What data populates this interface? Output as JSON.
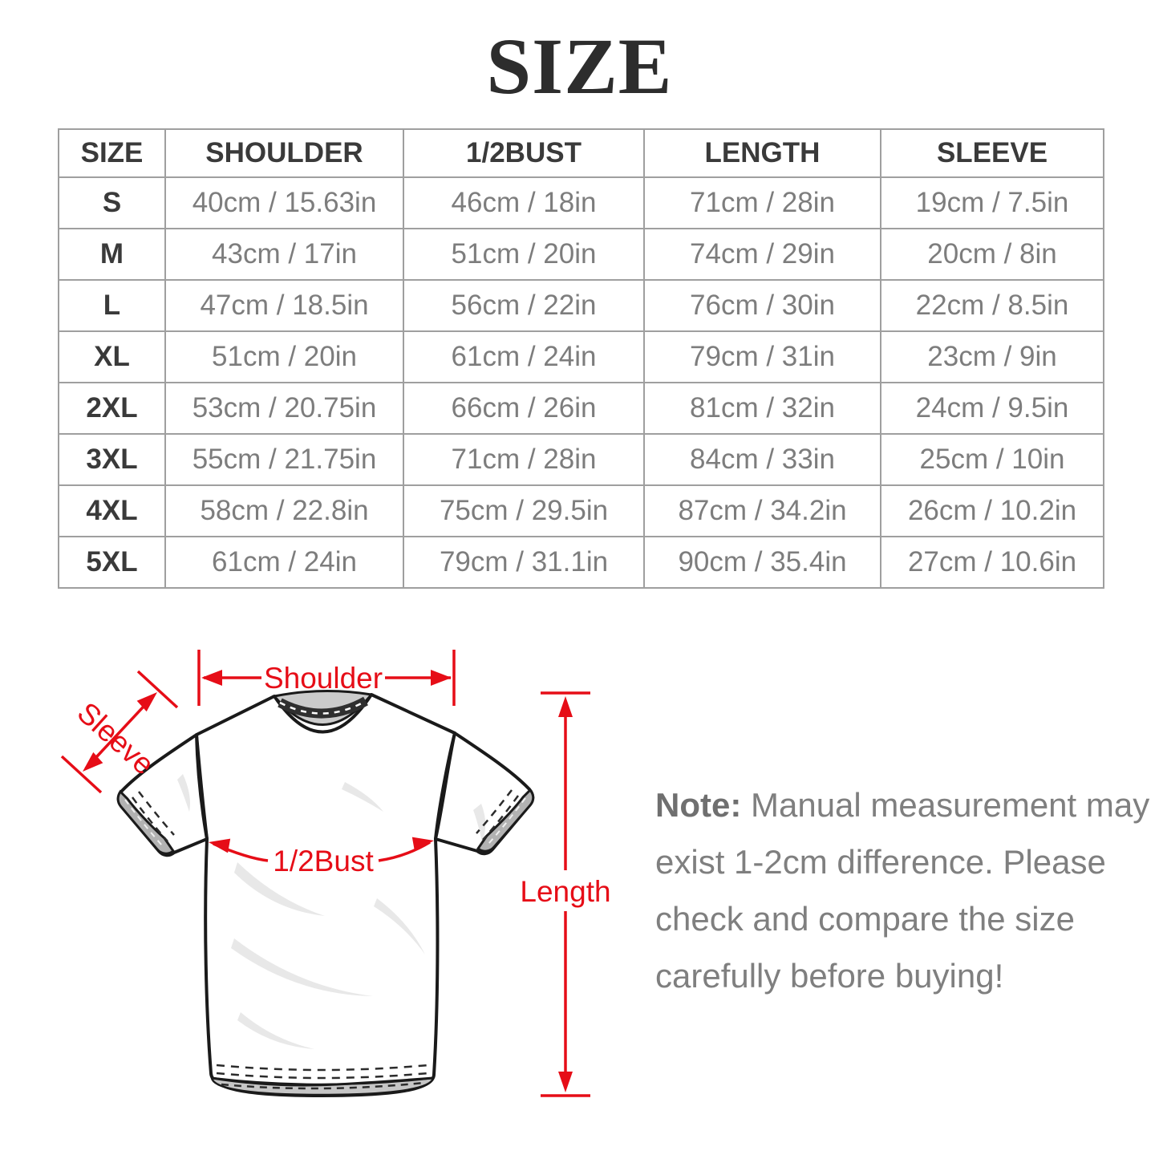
{
  "title": "SIZE",
  "table": {
    "columns": [
      "SIZE",
      "SHOULDER",
      "1/2BUST",
      "LENGTH",
      "SLEEVE"
    ],
    "rows": [
      [
        "S",
        "40cm / 15.63in",
        "46cm / 18in",
        "71cm / 28in",
        "19cm / 7.5in"
      ],
      [
        "M",
        "43cm / 17in",
        "51cm / 20in",
        "74cm / 29in",
        "20cm / 8in"
      ],
      [
        "L",
        "47cm / 18.5in",
        "56cm / 22in",
        "76cm / 30in",
        "22cm / 8.5in"
      ],
      [
        "XL",
        "51cm / 20in",
        "61cm / 24in",
        "79cm / 31in",
        "23cm / 9in"
      ],
      [
        "2XL",
        "53cm / 20.75in",
        "66cm / 26in",
        "81cm / 32in",
        "24cm / 9.5in"
      ],
      [
        "3XL",
        "55cm / 21.75in",
        "71cm / 28in",
        "84cm / 33in",
        "25cm / 10in"
      ],
      [
        "4XL",
        "58cm / 22.8in",
        "75cm / 29.5in",
        "87cm / 34.2in",
        "26cm / 10.2in"
      ],
      [
        "5XL",
        "61cm / 24in",
        "79cm / 31.1in",
        "90cm / 35.4in",
        "27cm / 10.6in"
      ]
    ]
  },
  "diagram": {
    "labels": {
      "shoulder": "Shoulder",
      "sleeve": "Sleeve",
      "bust": "1/2Bust",
      "length": "Length"
    }
  },
  "note": {
    "label": "Note:",
    "line1": "Manual measurement may",
    "line2": "exist 1-2cm difference. Please",
    "line3": "check and compare the size",
    "line4": "carefully before buying!"
  },
  "colors": {
    "accent_red": "#e60d17",
    "text_dark": "#3a3a3a",
    "text_gray": "#7d7d7d",
    "note_gray": "#7f7f7f",
    "border_gray": "#9f9f9f"
  }
}
